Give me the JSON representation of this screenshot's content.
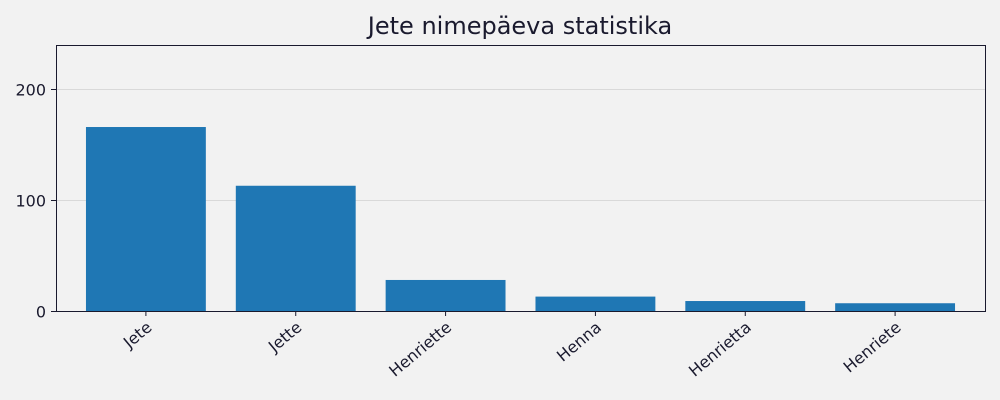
{
  "chart_data": {
    "type": "bar",
    "title": "Jete nimepäeva statistika",
    "categories": [
      "Jete",
      "Jette",
      "Henriette",
      "Henna",
      "Henrietta",
      "Henriete"
    ],
    "values": [
      166,
      113,
      28,
      13,
      9,
      7
    ],
    "xlabel": "",
    "ylabel": "",
    "ylim": [
      0,
      240
    ],
    "yticks": [
      0,
      100,
      200
    ],
    "grid": true,
    "bar_color": "#1f77b4",
    "background_color": "#f2f2f2",
    "axis_color": "#1a1a2e",
    "grid_color": "#d9d9d9"
  }
}
